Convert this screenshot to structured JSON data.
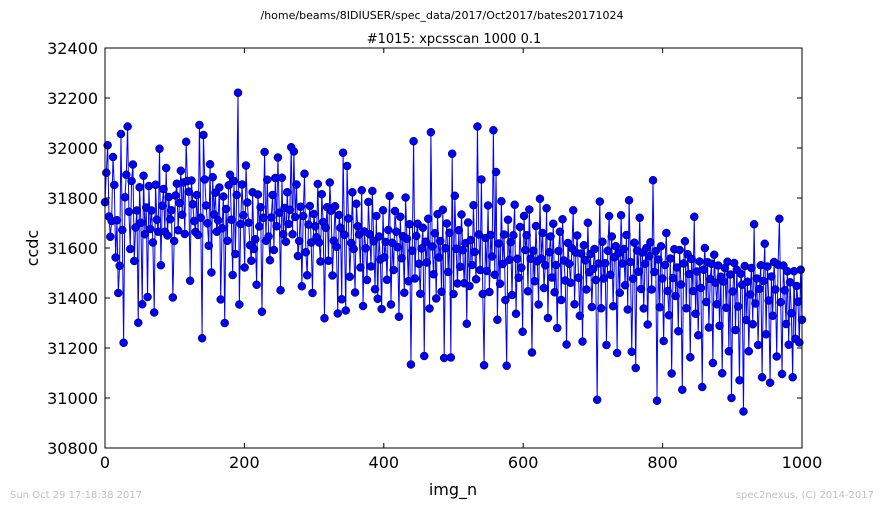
{
  "header": {
    "path": "/home/beams/8IDIUSER/spec_data/2017/Oct2017/bates20171024",
    "title": "#1015: xpcsscan 1000 0.1"
  },
  "footer": {
    "timestamp": "Sun Oct 29 17:18:38 2017",
    "credit": "spec2nexus, (C) 2014-2017"
  },
  "chart_data": {
    "type": "line",
    "title": "#1015: xpcsscan 1000 0.1",
    "xlabel": "img_n",
    "ylabel": "ccdc",
    "xlim": [
      0,
      1000
    ],
    "ylim": [
      30800,
      32400
    ],
    "xticks": [
      "0",
      "200",
      "400",
      "600",
      "800",
      "1000"
    ],
    "yticks": [
      "30800",
      "31000",
      "31200",
      "31400",
      "31600",
      "31800",
      "32000",
      "32200",
      "32400"
    ],
    "grid": false,
    "marker": "circle",
    "series_color": "#0000ff",
    "marker_edge_color": "#000000",
    "series": [
      {
        "values": [
          31783,
          31901,
          32011,
          31726,
          31645,
          31708,
          31964,
          31852,
          31562,
          31711,
          31420,
          31529,
          32056,
          31672,
          31221,
          31803,
          31893,
          32086,
          31745,
          31596,
          31868,
          31934,
          31548,
          31682,
          31750,
          31301,
          31843,
          31701,
          31375,
          31889,
          31655,
          31762,
          31404,
          31848,
          31676,
          31750,
          31622,
          31342,
          31853,
          31713,
          31665,
          31997,
          31531,
          31769,
          31836,
          31665,
          31920,
          31650,
          31804,
          31715,
          31751,
          31402,
          31628,
          31810,
          31857,
          31671,
          31780,
          31909,
          31733,
          31862,
          31656,
          32025,
          31868,
          31825,
          31469,
          31870,
          31775,
          31708,
          31664,
          31812,
          31652,
          32092,
          31721,
          31239,
          32052,
          31874,
          31770,
          31699,
          31609,
          31935,
          31502,
          31883,
          31734,
          31821,
          31665,
          31711,
          31842,
          31394,
          31679,
          31806,
          31300,
          31756,
          31629,
          31851,
          31893,
          31713,
          31492,
          31868,
          31576,
          31812,
          32221,
          31374,
          31696,
          31854,
          31731,
          31522,
          31930,
          31782,
          31701,
          31611,
          31549,
          31823,
          31596,
          31635,
          31453,
          31814,
          31686,
          31763,
          31345,
          31721,
          31984,
          31629,
          31873,
          31646,
          31551,
          31722,
          31812,
          31592,
          31880,
          31687,
          31962,
          31741,
          31431,
          31881,
          31655,
          31760,
          31625,
          31823,
          31696,
          31753,
          32003,
          31655,
          31986,
          31724,
          31854,
          31568,
          31628,
          31765,
          31447,
          31728,
          31897,
          31583,
          31491,
          31694,
          31768,
          31622,
          31420,
          31736,
          31687,
          31643,
          31856,
          31622,
          31546,
          31815,
          31704,
          31319,
          31681,
          31763,
          31549,
          31862,
          31749,
          31490,
          31629,
          31767,
          31605,
          31338,
          31732,
          31681,
          31395,
          31981,
          31653,
          31350,
          31928,
          31718,
          31485,
          31620,
          31823,
          31596,
          31422,
          31777,
          31687,
          31654,
          31522,
          31831,
          31368,
          31666,
          31599,
          31472,
          31784,
          31655,
          31526,
          31828,
          31627,
          31435,
          31728,
          31397,
          31646,
          31554,
          31356,
          31751,
          31563,
          31624,
          31473,
          31672,
          31808,
          31374,
          31621,
          31512,
          31748,
          31665,
          31603,
          31325,
          31725,
          31559,
          31647,
          31421,
          31802,
          31637,
          31467,
          31695,
          31134,
          31589,
          32027,
          31478,
          31648,
          31697,
          31537,
          31417,
          31598,
          31681,
          31168,
          31625,
          31542,
          31717,
          31358,
          32063,
          31606,
          31495,
          31659,
          31398,
          31735,
          31562,
          31628,
          31425,
          31753,
          31160,
          31599,
          31698,
          31504,
          31661,
          31162,
          31977,
          31416,
          31809,
          31597,
          31458,
          31671,
          31525,
          31734,
          31591,
          31459,
          31619,
          31297,
          31702,
          31448,
          31632,
          31532,
          31771,
          31584,
          31475,
          32086,
          31654,
          31512,
          31874,
          31416,
          31131,
          31640,
          31508,
          31770,
          31424,
          31652,
          31566,
          32071,
          31493,
          31904,
          31313,
          31618,
          31457,
          31787,
          31536,
          31654,
          31392,
          31129,
          31713,
          31553,
          31623,
          31412,
          31651,
          31773,
          31337,
          31557,
          31481,
          31684,
          31521,
          31265,
          31728,
          31592,
          31651,
          31427,
          31754,
          31557,
          31182,
          31589,
          31467,
          31688,
          31547,
          31374,
          31797,
          31558,
          31660,
          31440,
          31531,
          31759,
          31320,
          31583,
          31646,
          31482,
          31697,
          31423,
          31532,
          31280,
          31588,
          31665,
          31392,
          31715,
          31550,
          31470,
          31214,
          31620,
          31537,
          31461,
          31599,
          31751,
          31375,
          31582,
          31650,
          31481,
          31329,
          31578,
          31226,
          31611,
          31551,
          31434,
          31701,
          31503,
          31576,
          31364,
          31516,
          31596,
          31472,
          30993,
          31538,
          31786,
          31359,
          31625,
          31478,
          31539,
          31212,
          31589,
          31728,
          31493,
          31646,
          31367,
          31563,
          31607,
          31180,
          31579,
          31421,
          31731,
          31538,
          31596,
          31451,
          31652,
          31354,
          31791,
          31544,
          31185,
          31477,
          31621,
          31120,
          31590,
          31505,
          31721,
          31436,
          31582,
          31358,
          31537,
          31600,
          31294,
          31567,
          31623,
          31434,
          31871,
          31504,
          31587,
          30989,
          31554,
          31363,
          31607,
          31478,
          31228,
          31532,
          31660,
          31428,
          31331,
          31558,
          31098,
          31480,
          31595,
          31408,
          31522,
          31267,
          31592,
          31454,
          31033,
          31538,
          31627,
          31359,
          31575,
          31496,
          31163,
          31556,
          31428,
          31725,
          31337,
          31506,
          31251,
          31546,
          31440,
          31044,
          31513,
          31600,
          31384,
          31543,
          31282,
          31476,
          31537,
          31140,
          31573,
          31461,
          31375,
          31530,
          31289,
          31485,
          31099,
          31466,
          31520,
          31361,
          31545,
          31187,
          31494,
          31000,
          31426,
          31540,
          31272,
          31513,
          31366,
          31071,
          31497,
          31453,
          30946,
          31528,
          31312,
          31465,
          31187,
          31414,
          31520,
          31295,
          31695,
          31378,
          31478,
          31212,
          31436,
          31531,
          31083,
          31468,
          31617,
          31255,
          31526,
          31390,
          31061,
          31486,
          31329,
          31544,
          31434,
          31166,
          31533,
          31717,
          31383,
          31096,
          31530,
          31431,
          31296,
          31507,
          31213,
          31463,
          31339,
          31083,
          31507,
          31237,
          31448,
          31385,
          31222,
          31513,
          31313
        ]
      }
    ]
  }
}
